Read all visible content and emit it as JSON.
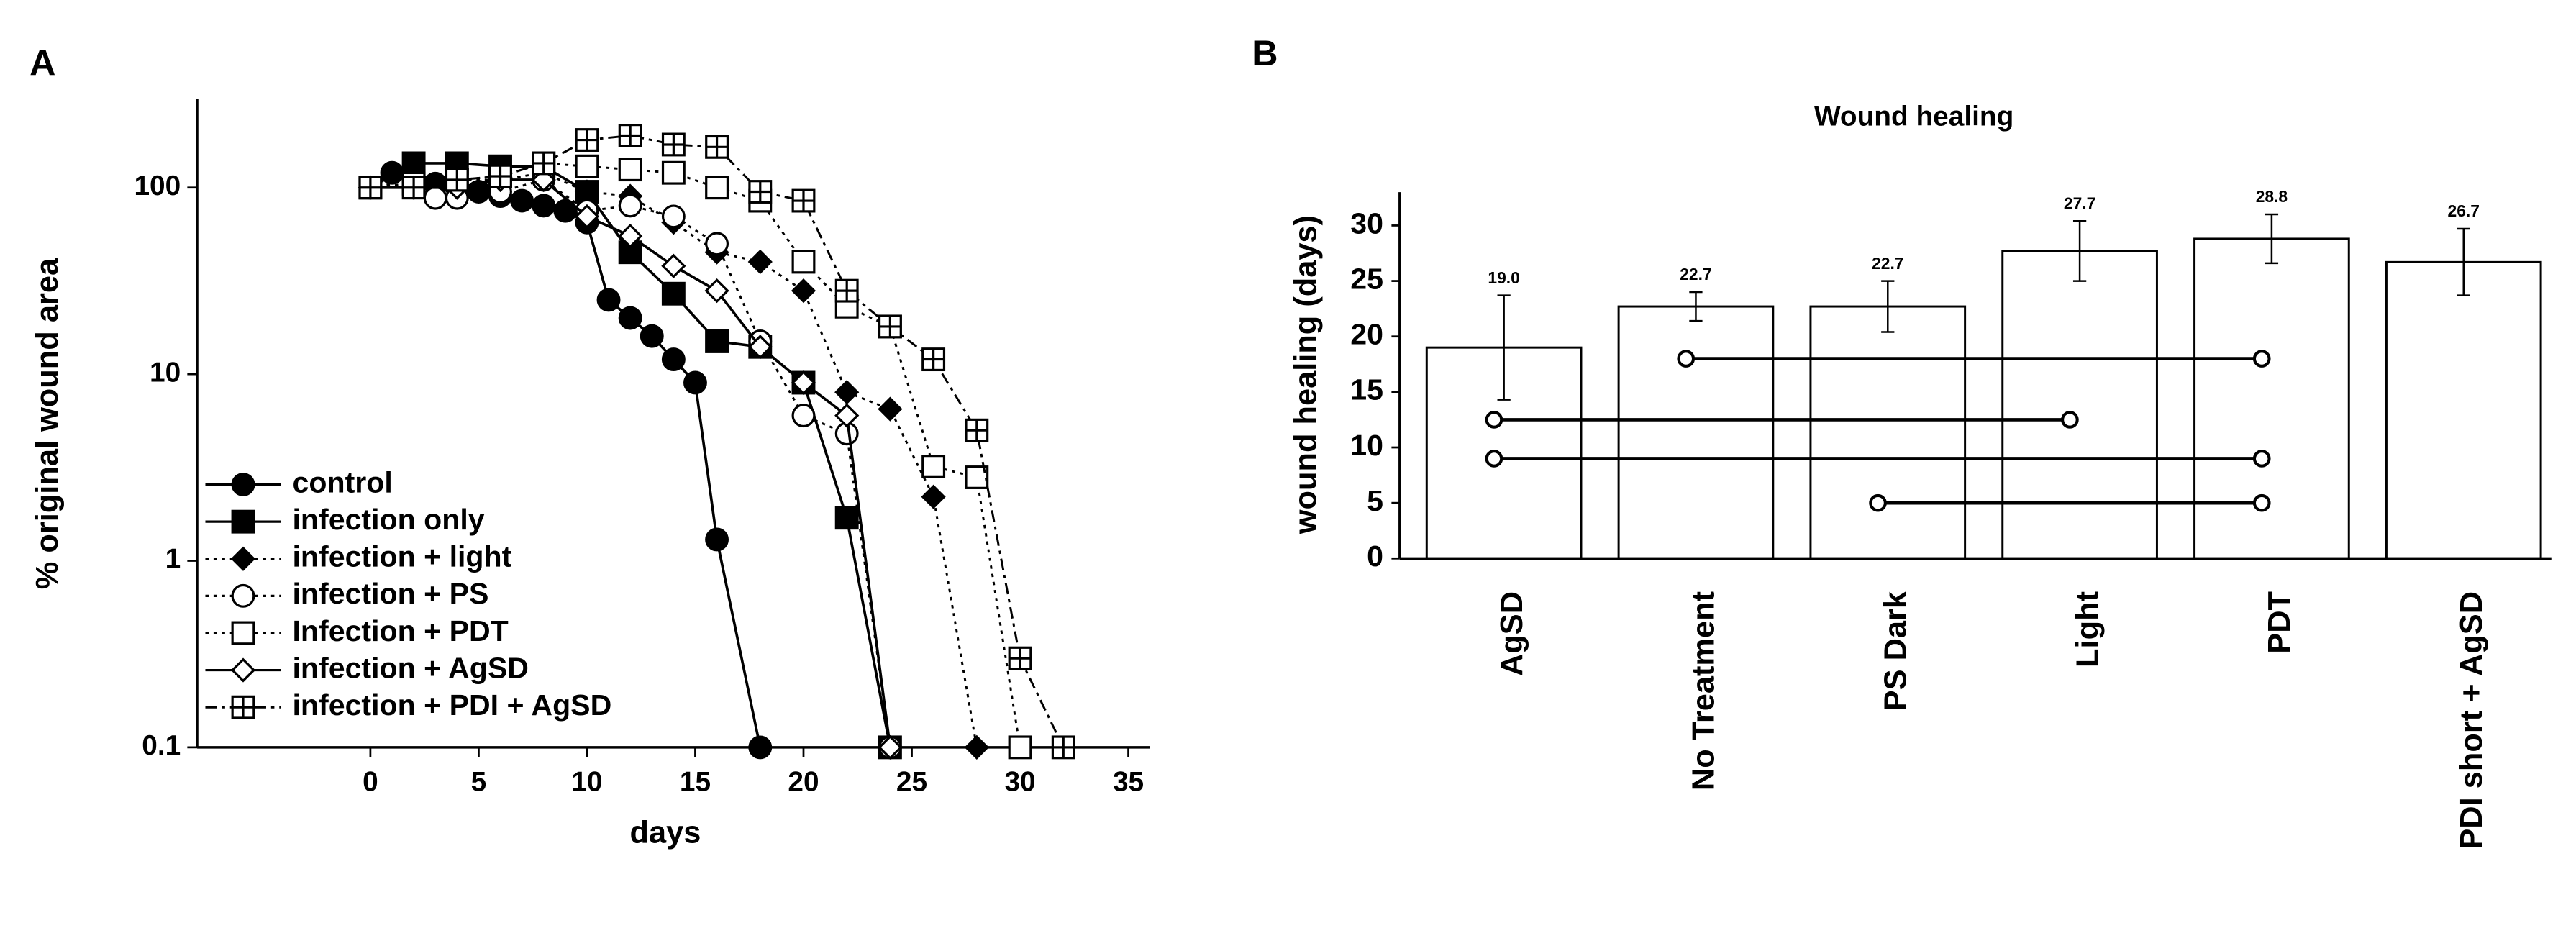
{
  "chart_data": [
    {
      "type": "line",
      "panel": "A",
      "xlabel": "days",
      "ylabel": "% original wound area",
      "xlim": [
        -8,
        36
      ],
      "xticks": [
        0,
        5,
        10,
        15,
        20,
        25,
        30,
        35
      ],
      "ylim": [
        0.1,
        300
      ],
      "yticks": [
        0.1,
        1,
        10,
        100
      ],
      "yscale": "log",
      "legend": "lower left",
      "series": [
        {
          "name": "control",
          "marker": "circle-filled",
          "linestyle": "solid",
          "x": [
            0,
            1,
            2,
            3,
            4,
            5,
            6,
            7,
            8,
            9,
            10,
            11,
            12,
            13,
            14,
            15,
            16,
            18
          ],
          "values": [
            100,
            120,
            125,
            105,
            100,
            95,
            90,
            85,
            80,
            75,
            65,
            25,
            20,
            16,
            12,
            9,
            1.3,
            0.1
          ]
        },
        {
          "name": "infection only",
          "marker": "square-filled",
          "linestyle": "solid",
          "x": [
            0,
            2,
            4,
            6,
            8,
            10,
            12,
            14,
            16,
            18,
            20,
            22,
            24
          ],
          "values": [
            100,
            135,
            135,
            130,
            130,
            95,
            45,
            27,
            15,
            14,
            9,
            1.7,
            0.1
          ]
        },
        {
          "name": "infection + light",
          "marker": "diamond-filled",
          "linestyle": "dotted",
          "x": [
            0,
            2,
            4,
            6,
            8,
            10,
            12,
            14,
            16,
            18,
            20,
            22,
            24,
            26,
            28
          ],
          "values": [
            100,
            110,
            110,
            110,
            120,
            95,
            90,
            65,
            45,
            40,
            28,
            8,
            6.5,
            2.2,
            0.1
          ]
        },
        {
          "name": "infection + PS",
          "marker": "circle-open",
          "linestyle": "dotted",
          "x": [
            0,
            2,
            3,
            4,
            6,
            8,
            10,
            12,
            14,
            16,
            18,
            20,
            22,
            24
          ],
          "values": [
            100,
            100,
            88,
            88,
            95,
            110,
            75,
            80,
            70,
            50,
            15,
            6,
            4.8,
            0.1
          ]
        },
        {
          "name": "Infection + PDT",
          "marker": "square-open",
          "linestyle": "dotted",
          "x": [
            0,
            2,
            4,
            6,
            8,
            10,
            12,
            14,
            16,
            18,
            20,
            22,
            24,
            26,
            28,
            30
          ],
          "values": [
            100,
            105,
            110,
            115,
            135,
            130,
            125,
            120,
            100,
            85,
            40,
            23,
            18,
            3.2,
            2.8,
            0.1
          ]
        },
        {
          "name": "infection + AgSD",
          "marker": "diamond-open",
          "linestyle": "solid",
          "x": [
            0,
            2,
            4,
            6,
            8,
            10,
            12,
            14,
            16,
            18,
            20,
            22,
            24
          ],
          "values": [
            100,
            100,
            100,
            110,
            110,
            70,
            55,
            38,
            28,
            14,
            9,
            6,
            0.1
          ]
        },
        {
          "name": "infection + PDI  + AgSD",
          "marker": "square-plus",
          "linestyle": "dashdot",
          "x": [
            0,
            2,
            4,
            6,
            8,
            10,
            12,
            14,
            16,
            18,
            20,
            22,
            24,
            26,
            28,
            30,
            32
          ],
          "values": [
            100,
            100,
            110,
            115,
            135,
            180,
            190,
            170,
            165,
            95,
            85,
            28,
            18,
            12,
            5,
            0.3,
            0.1
          ]
        }
      ]
    },
    {
      "type": "bar",
      "panel": "B",
      "title": "Wound healing",
      "ylabel": "wound healing (days)",
      "categories": [
        "AgSD",
        "No Treatment",
        "PS Dark",
        "Light",
        "PDT",
        "PDI  short + AgSD"
      ],
      "values": [
        19,
        22.7,
        22.7,
        27.7,
        28.8,
        26.7
      ],
      "value_labels": [
        "19.0",
        "22.7",
        "22.7",
        "27.7",
        "28.8",
        "26.7"
      ],
      "errors": [
        4.7,
        1.3,
        2.3,
        2.7,
        2.2,
        3
      ],
      "ylim": [
        0,
        33
      ],
      "yticks": [
        0,
        5,
        10,
        15,
        20,
        25,
        30
      ],
      "color": "#ffffff",
      "comparisons": [
        {
          "from": 1,
          "to": 4,
          "y": 18
        },
        {
          "from": 0,
          "to": 3,
          "y": 12.5
        },
        {
          "from": 0,
          "to": 4,
          "y": 9
        },
        {
          "from": 2,
          "to": 4,
          "y": 5
        }
      ]
    }
  ]
}
